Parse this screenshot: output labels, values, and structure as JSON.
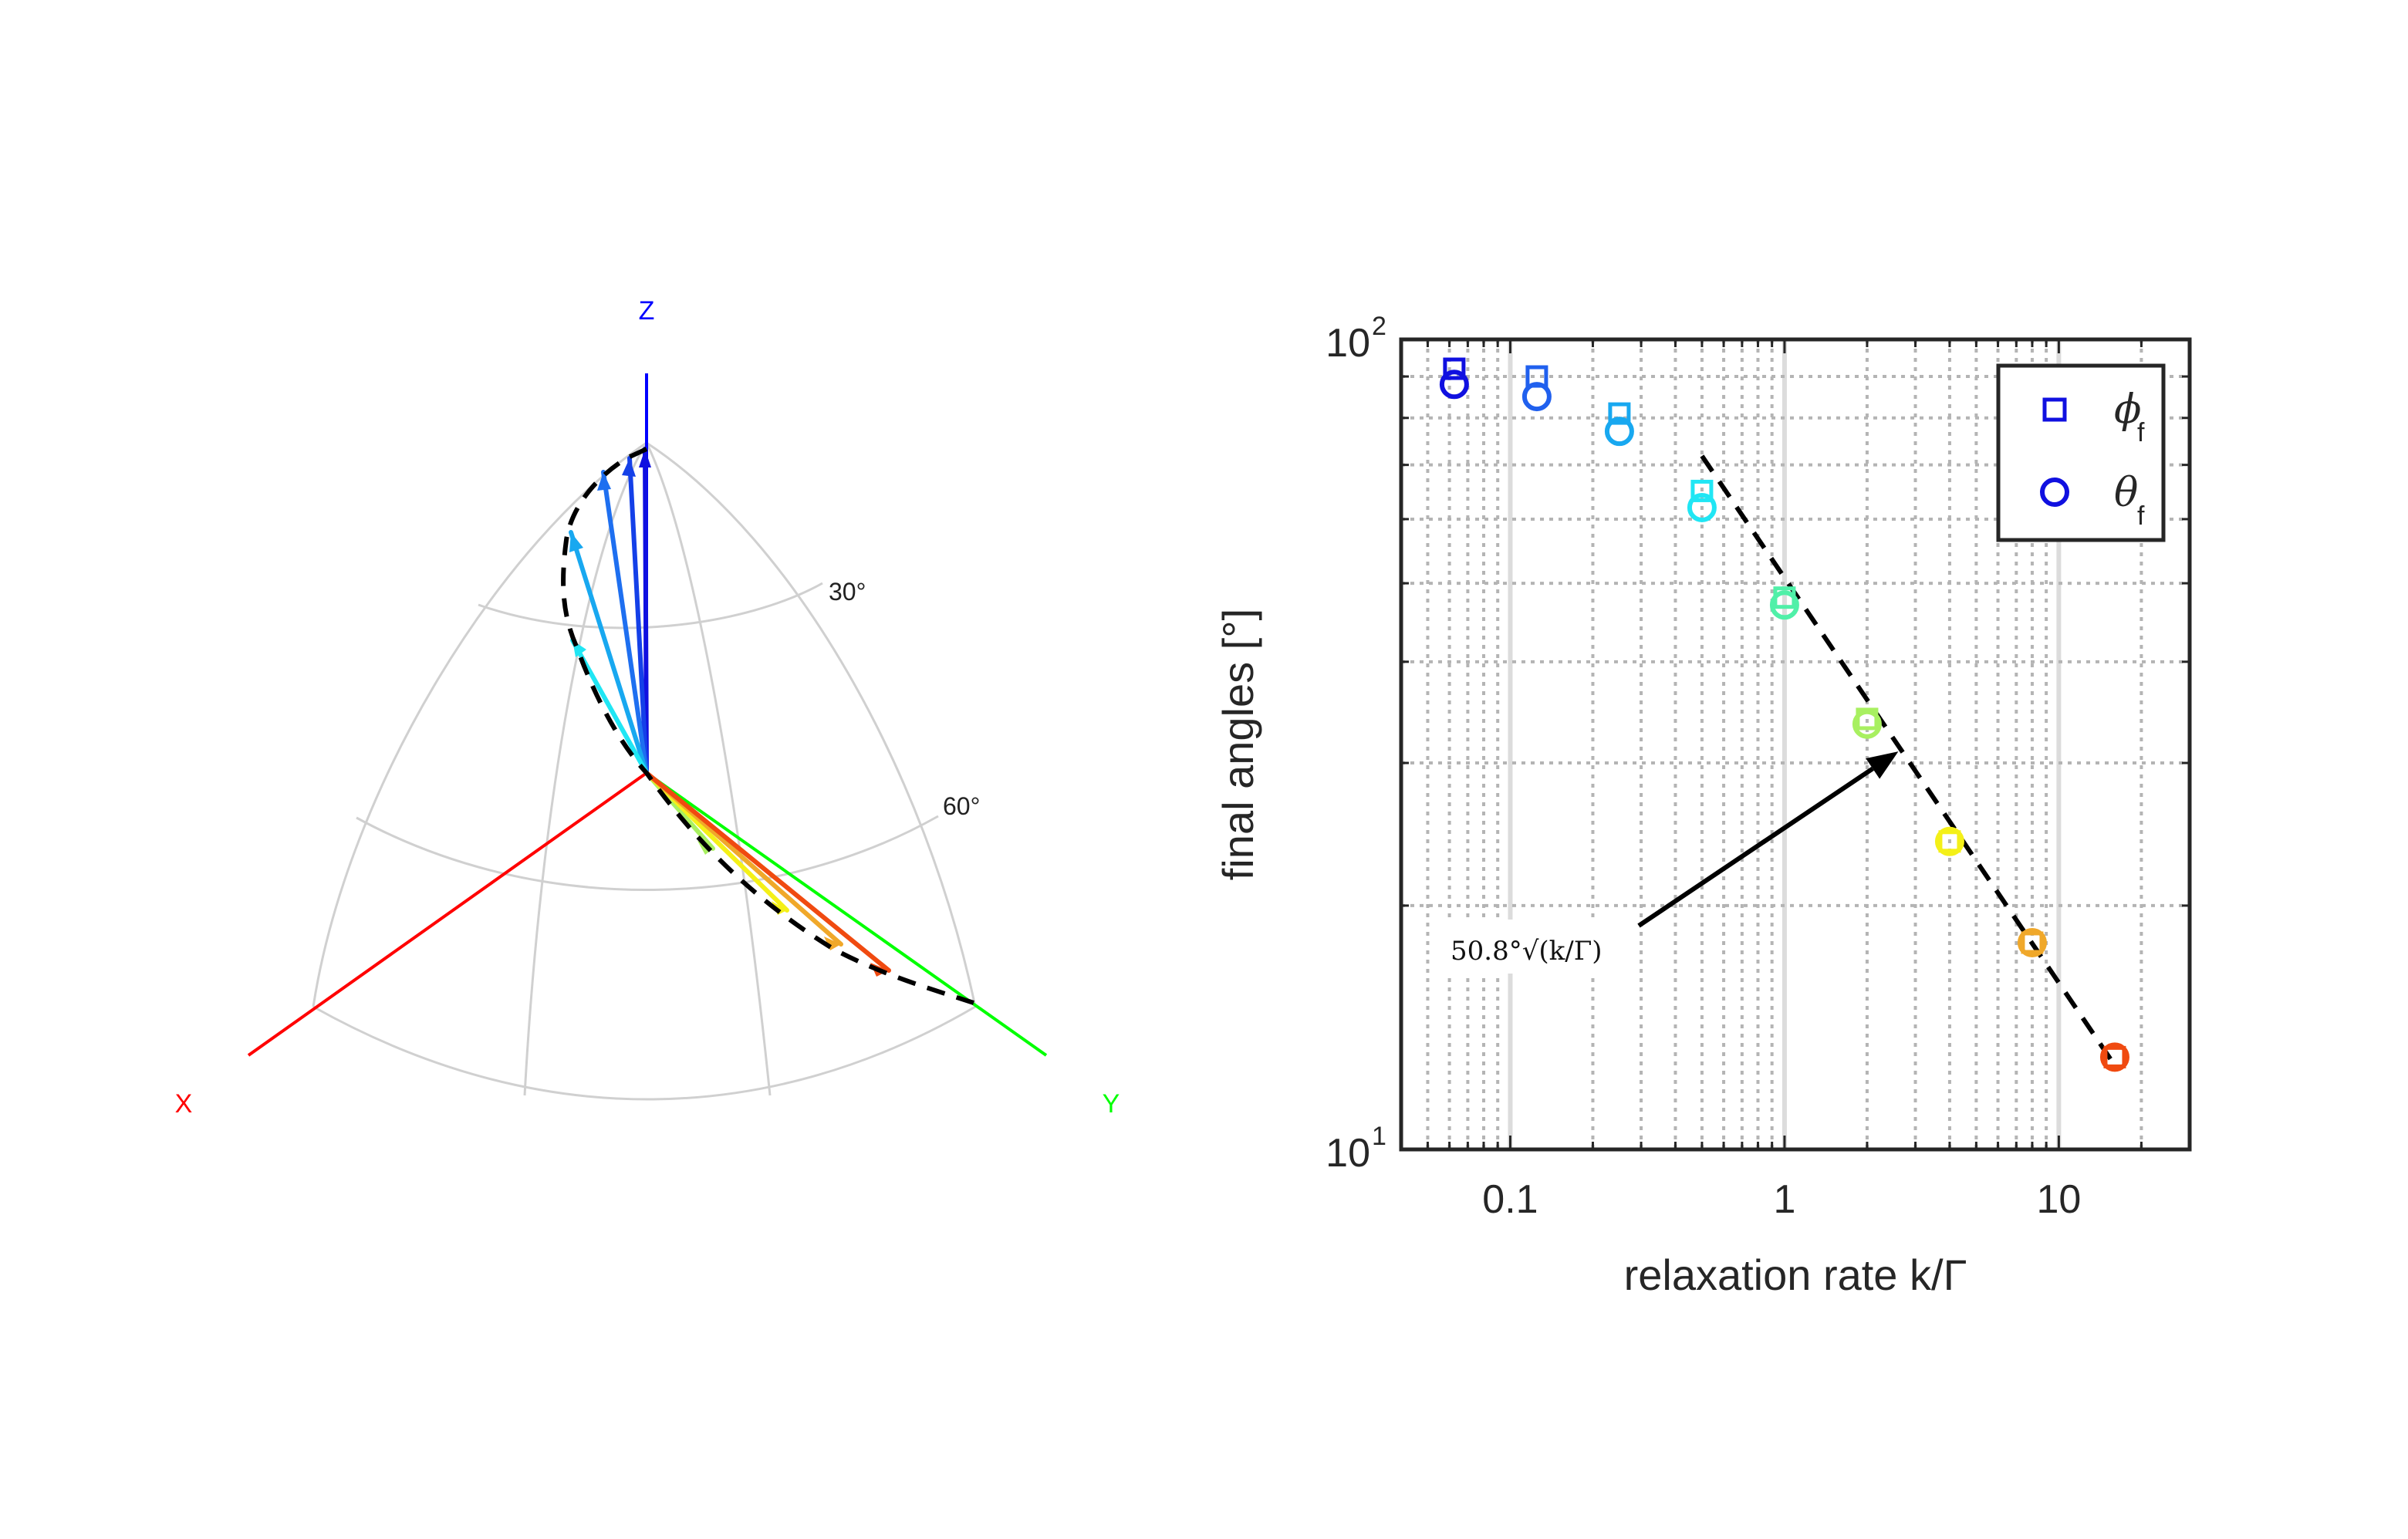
{
  "sphere_panel": {
    "axis_labels": {
      "x": "X",
      "y": "Y",
      "z": "Z"
    },
    "latitude_labels": [
      "30°",
      "60°"
    ],
    "axis_colors": {
      "x": "#ff0000",
      "y": "#00ff00",
      "z": "#0000ff"
    }
  },
  "chart_data": {
    "type": "scatter",
    "xlabel": "relaxation rate k/Γ",
    "ylabel": "final angles [°]",
    "x_scale": "log",
    "y_scale": "log",
    "xlim": [
      0.04,
      30
    ],
    "ylim": [
      10,
      100
    ],
    "x_ticks": [
      {
        "value": 0.1,
        "label": "0.1"
      },
      {
        "value": 1,
        "label": "1"
      },
      {
        "value": 10,
        "label": "10"
      }
    ],
    "y_ticks": [
      {
        "value": 10,
        "base": "10",
        "exp": "1"
      },
      {
        "value": 100,
        "base": "10",
        "exp": "2"
      }
    ],
    "grid": true,
    "legend_placement": "top-right",
    "x": [
      0.0625,
      0.125,
      0.25,
      0.5,
      1,
      2,
      4,
      8,
      16
    ],
    "colors": [
      "#1010e0",
      "#2060ee",
      "#18a8f0",
      "#20e6f4",
      "#50f0a8",
      "#a8f060",
      "#f4f018",
      "#f0a82a",
      "#f04a10"
    ],
    "series": [
      {
        "name": "ϕ",
        "subscript": "f",
        "marker": "square",
        "values": [
          92,
          90,
          81,
          65,
          48,
          34,
          24,
          18,
          13
        ]
      },
      {
        "name": "θ",
        "subscript": "f",
        "marker": "circle",
        "values": [
          88,
          85,
          77,
          62,
          47,
          33.5,
          24,
          18,
          13
        ]
      }
    ],
    "fit_line": {
      "x": [
        0.5,
        16
      ],
      "y": [
        71.8,
        12.7
      ]
    },
    "annotation": {
      "text": "50.8°√(k/Γ)",
      "arrow_to": {
        "x": 2.6,
        "y": 31
      }
    }
  }
}
